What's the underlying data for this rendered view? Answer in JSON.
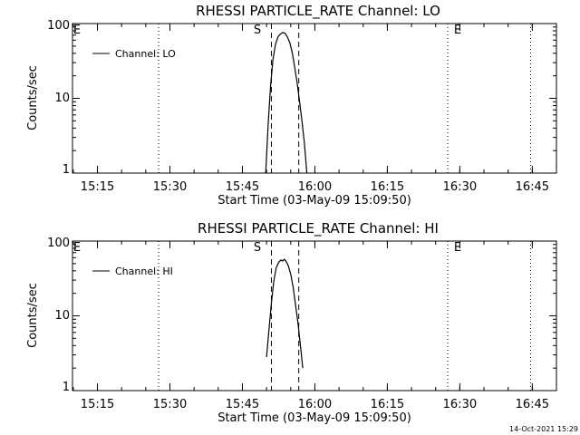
{
  "timestamp": "14-Oct-2021 15:29",
  "chart_data": [
    {
      "type": "line",
      "title": "RHESSI PARTICLE_RATE Channel: LO",
      "xlabel": "Start Time (03-May-09 15:09:50)",
      "ylabel": "Counts/sec",
      "y_scale": "log",
      "ylim": [
        1,
        100
      ],
      "xlim": [
        "15:09:50",
        "16:50:00"
      ],
      "x_ticks": [
        "15:15",
        "15:30",
        "15:45",
        "16:00",
        "16:15",
        "16:30",
        "16:45"
      ],
      "y_ticks": [
        "1",
        "10",
        "100"
      ],
      "legend": {
        "position": "top-left",
        "label": "Channel: LO"
      },
      "markers": [
        {
          "label": "E",
          "time": "15:09:50",
          "style": "dotted"
        },
        {
          "label": "",
          "time": "15:27:40",
          "style": "dotted"
        },
        {
          "label": "S",
          "time": "15:51:00",
          "style": "dashed"
        },
        {
          "label": "",
          "time": "15:56:40",
          "style": "dashed"
        },
        {
          "label": "E",
          "time": "16:27:30",
          "style": "dotted"
        },
        {
          "label": "",
          "time": "16:44:40",
          "style": "dotted"
        }
      ],
      "series": [
        {
          "name": "Channel: LO",
          "x": [
            "15:49:50",
            "15:50:20",
            "15:50:50",
            "15:51:20",
            "15:51:50",
            "15:52:20",
            "15:52:50",
            "15:53:20",
            "15:53:50",
            "15:54:20",
            "15:54:50",
            "15:55:20",
            "15:55:50",
            "15:56:20",
            "15:56:50",
            "15:57:20",
            "15:57:50",
            "15:58:20"
          ],
          "y": [
            1.0,
            4.5,
            15,
            33,
            52,
            66,
            72,
            76,
            74,
            66,
            55,
            40,
            26,
            16,
            9,
            5,
            2.5,
            1.0
          ]
        }
      ]
    },
    {
      "type": "line",
      "title": "RHESSI PARTICLE_RATE Channel: HI",
      "xlabel": "Start Time (03-May-09 15:09:50)",
      "ylabel": "Counts/sec",
      "y_scale": "log",
      "ylim": [
        1,
        100
      ],
      "xlim": [
        "15:09:50",
        "16:50:00"
      ],
      "x_ticks": [
        "15:15",
        "15:30",
        "15:45",
        "16:00",
        "16:15",
        "16:30",
        "16:45"
      ],
      "y_ticks": [
        "1",
        "10",
        "100"
      ],
      "legend": {
        "position": "top-left",
        "label": "Channel: HI"
      },
      "markers": [
        {
          "label": "E",
          "time": "15:09:50",
          "style": "dotted"
        },
        {
          "label": "",
          "time": "15:27:40",
          "style": "dotted"
        },
        {
          "label": "S",
          "time": "15:51:00",
          "style": "dashed"
        },
        {
          "label": "",
          "time": "15:56:40",
          "style": "dashed"
        },
        {
          "label": "E",
          "time": "16:27:30",
          "style": "dotted"
        },
        {
          "label": "",
          "time": "16:44:40",
          "style": "dotted"
        }
      ],
      "series": [
        {
          "name": "Channel: HI",
          "x": [
            "15:50:00",
            "15:50:30",
            "15:51:00",
            "15:51:30",
            "15:52:00",
            "15:52:30",
            "15:53:00",
            "15:53:20",
            "15:53:40",
            "15:54:00",
            "15:54:30",
            "15:55:00",
            "15:55:30",
            "15:56:00",
            "15:56:30",
            "15:57:00",
            "15:57:30"
          ],
          "y": [
            2.8,
            6.5,
            15,
            29,
            44,
            52,
            56,
            54,
            57,
            54,
            47,
            36,
            24,
            14,
            8,
            4,
            2.0
          ]
        }
      ]
    }
  ]
}
